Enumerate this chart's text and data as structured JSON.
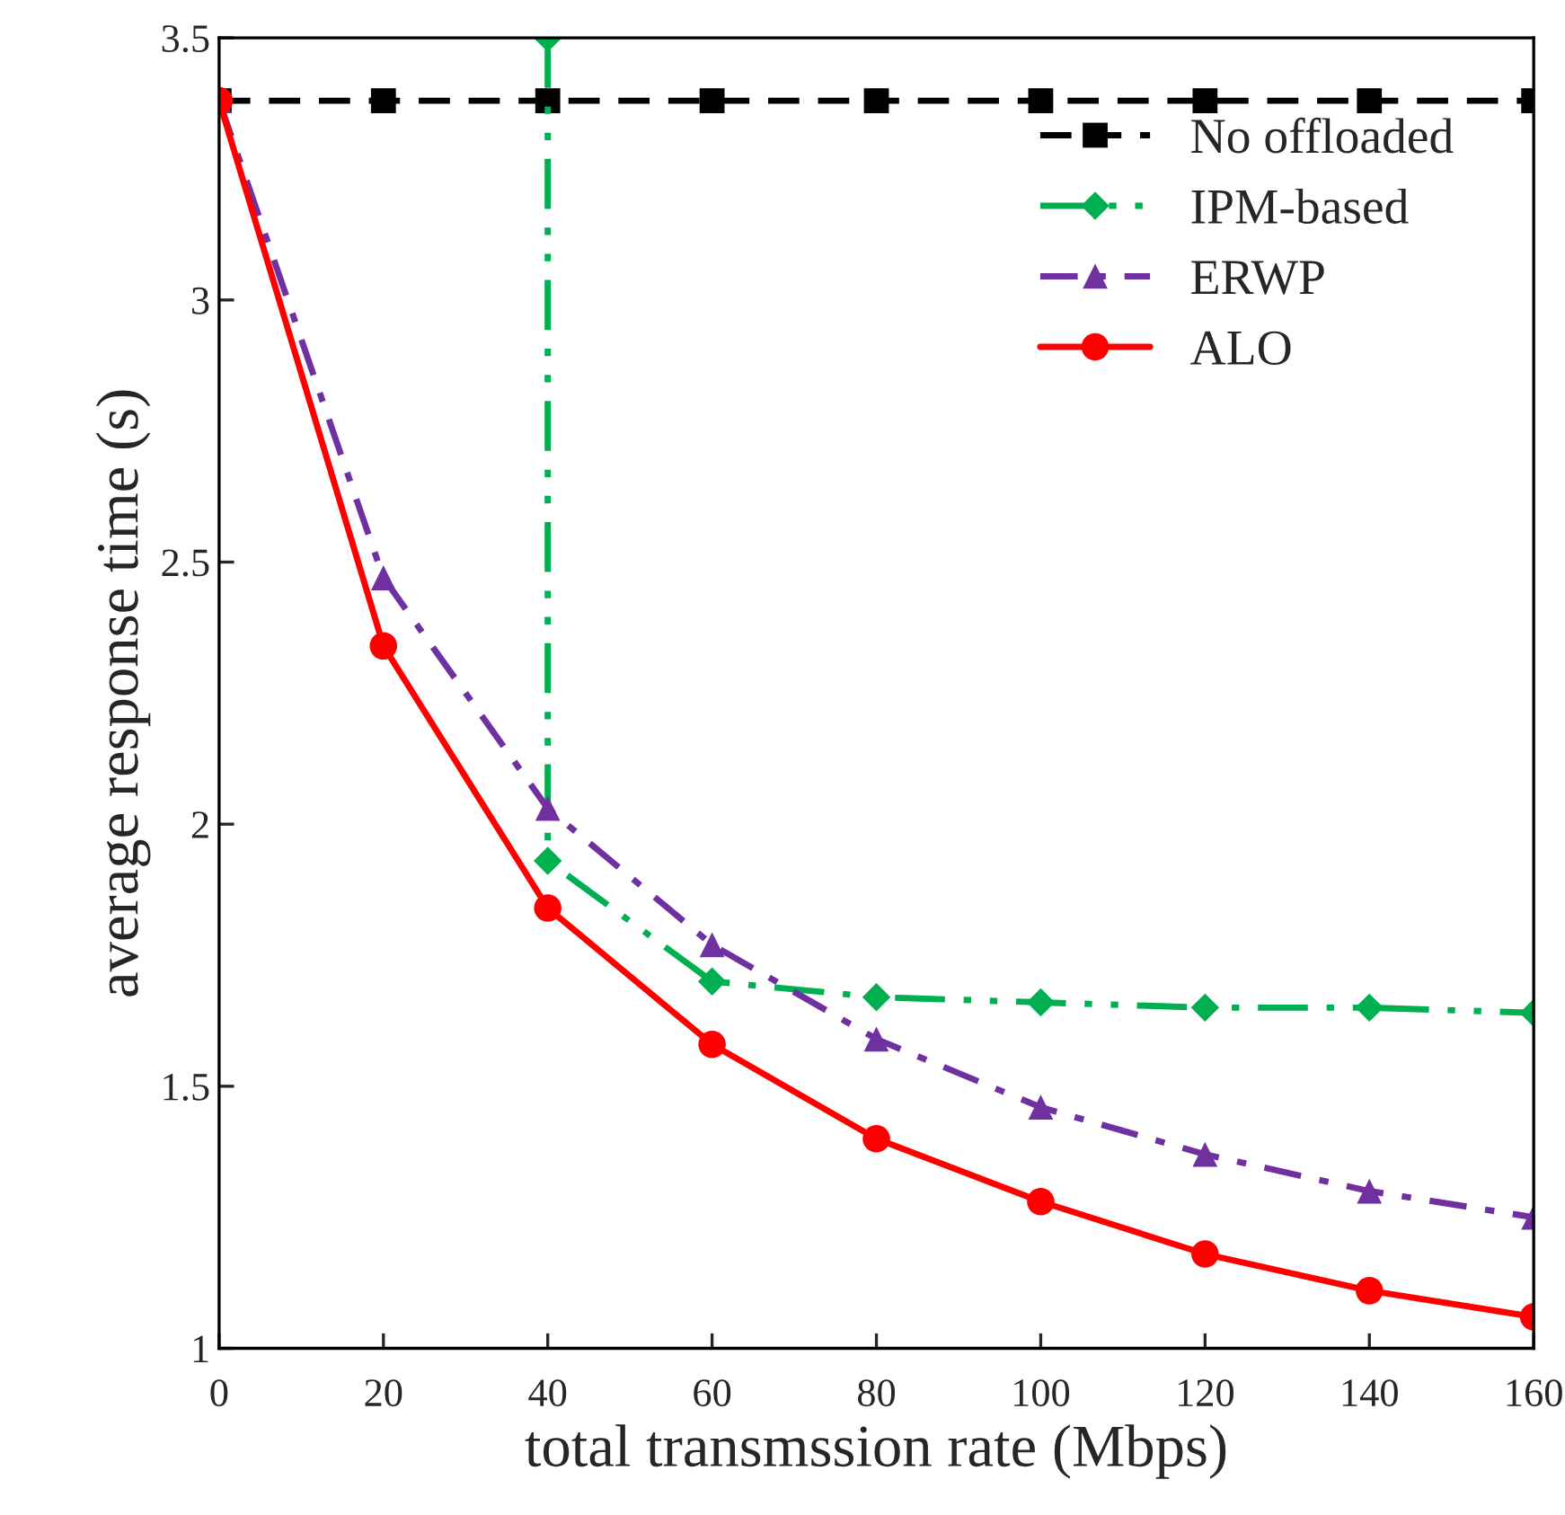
{
  "chart_data": {
    "type": "line",
    "xlabel": "total transmssion rate (Mbps)",
    "ylabel": "average response time (s)",
    "x": [
      0,
      20,
      40,
      60,
      80,
      100,
      120,
      140,
      160
    ],
    "series": [
      {
        "name": "No offloaded",
        "color": "#000000",
        "marker": "square",
        "line_style": "dashed",
        "values": [
          3.38,
          3.38,
          3.38,
          3.38,
          3.38,
          3.38,
          3.38,
          3.38,
          3.38
        ]
      },
      {
        "name": "IPM-based",
        "color": "#00b050",
        "marker": "diamond",
        "line_style": "dashdotdot",
        "x": [
          40,
          40,
          60,
          80,
          100,
          120,
          140,
          160
        ],
        "values": [
          3.5,
          1.93,
          1.7,
          1.67,
          1.66,
          1.65,
          1.65,
          1.64
        ]
      },
      {
        "name": "ERWP",
        "color": "#7030a0",
        "marker": "triangle",
        "line_style": "dashdot",
        "values": [
          3.38,
          2.47,
          2.03,
          1.77,
          1.59,
          1.46,
          1.37,
          1.3,
          1.25
        ]
      },
      {
        "name": "ALO",
        "color": "#ff0000",
        "marker": "circle",
        "line_style": "solid",
        "values": [
          3.38,
          2.34,
          1.84,
          1.58,
          1.4,
          1.28,
          1.18,
          1.11,
          1.06
        ]
      }
    ],
    "xlim": [
      0,
      160
    ],
    "xticks": [
      0,
      20,
      40,
      60,
      80,
      100,
      120,
      140,
      160
    ],
    "ylim": [
      1,
      3.5
    ],
    "yticks": [
      1,
      1.5,
      2,
      2.5,
      3,
      3.5
    ],
    "grid": false,
    "legend": "top right"
  }
}
